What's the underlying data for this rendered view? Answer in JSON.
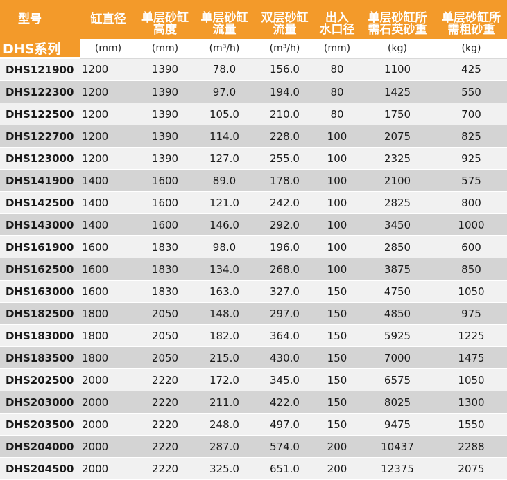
{
  "headers": [
    "型号",
    "缸直径",
    "单层砂缸\n高度",
    "单层砂缸\n流量",
    "双层砂缸\n流量",
    "出入\n水口径",
    "单层砂缸所\n需石英砂重",
    "单层砂缸所\n需粗砂重"
  ],
  "series_label": "DHS系列",
  "units": [
    "(mm)",
    "(mm)",
    "(m³/h)",
    "(m³/h)",
    "(mm)",
    "(kg)",
    "(kg)"
  ],
  "rows": [
    [
      "DHS121900",
      "1200",
      "1390",
      "78.0",
      "156.0",
      "80",
      "1100",
      "425"
    ],
    [
      "DHS122300",
      "1200",
      "1390",
      "97.0",
      "194.0",
      "80",
      "1425",
      "550"
    ],
    [
      "DHS122500",
      "1200",
      "1390",
      "105.0",
      "210.0",
      "80",
      "1750",
      "700"
    ],
    [
      "DHS122700",
      "1200",
      "1390",
      "114.0",
      "228.0",
      "100",
      "2075",
      "825"
    ],
    [
      "DHS123000",
      "1200",
      "1390",
      "127.0",
      "255.0",
      "100",
      "2325",
      "925"
    ],
    [
      "DHS141900",
      "1400",
      "1600",
      "89.0",
      "178.0",
      "100",
      "2100",
      "575"
    ],
    [
      "DHS142500",
      "1400",
      "1600",
      "121.0",
      "242.0",
      "100",
      "2825",
      "800"
    ],
    [
      "DHS143000",
      "1400",
      "1600",
      "146.0",
      "292.0",
      "100",
      "3450",
      "1000"
    ],
    [
      "DHS161900",
      "1600",
      "1830",
      "98.0",
      "196.0",
      "100",
      "2850",
      "600"
    ],
    [
      "DHS162500",
      "1600",
      "1830",
      "134.0",
      "268.0",
      "100",
      "3875",
      "850"
    ],
    [
      "DHS163000",
      "1600",
      "1830",
      "163.0",
      "327.0",
      "150",
      "4750",
      "1050"
    ],
    [
      "DHS182500",
      "1800",
      "2050",
      "148.0",
      "297.0",
      "150",
      "4850",
      "975"
    ],
    [
      "DHS183000",
      "1800",
      "2050",
      "182.0",
      "364.0",
      "150",
      "5925",
      "1225"
    ],
    [
      "DHS183500",
      "1800",
      "2050",
      "215.0",
      "430.0",
      "150",
      "7000",
      "1475"
    ],
    [
      "DHS202500",
      "2000",
      "2220",
      "172.0",
      "345.0",
      "150",
      "6575",
      "1050"
    ],
    [
      "DHS203000",
      "2000",
      "2220",
      "211.0",
      "422.0",
      "150",
      "8025",
      "1300"
    ],
    [
      "DHS203500",
      "2000",
      "2220",
      "248.0",
      "497.0",
      "150",
      "9475",
      "1550"
    ],
    [
      "DHS204000",
      "2000",
      "2220",
      "287.0",
      "574.0",
      "200",
      "10437",
      "2288"
    ],
    [
      "DHS204500",
      "2000",
      "2220",
      "325.0",
      "651.0",
      "200",
      "12375",
      "2075"
    ]
  ],
  "colors": {
    "header_bg": "#f39a2a",
    "row_light": "#f1f1f1",
    "row_dark": "#d4d4d4"
  }
}
